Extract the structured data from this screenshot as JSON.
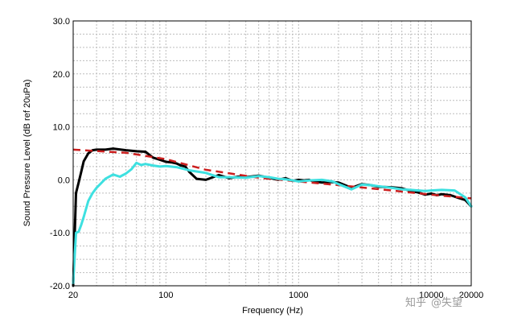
{
  "chart_data": {
    "type": "line",
    "title": "",
    "xlabel": "Frequency (Hz)",
    "ylabel": "Sound Pressure Level (dB ref 20uPa)",
    "xscale": "log",
    "xlim": [
      20,
      20000
    ],
    "ylim": [
      -20,
      30
    ],
    "grid": true,
    "y_ticks": [
      "30.0",
      "20.0",
      "10.0",
      "0.0",
      "-10.0",
      "-20.0"
    ],
    "y_tick_values": [
      30,
      20,
      10,
      0,
      -10,
      -20
    ],
    "x_ticks": [
      "20",
      "100",
      "1000",
      "10000",
      "20000"
    ],
    "x_tick_values": [
      20,
      100,
      1000,
      10000,
      20000
    ],
    "series": [
      {
        "color": "#000000",
        "dash": "solid",
        "x": [
          20,
          21,
          22,
          23,
          24,
          26,
          28,
          30,
          35,
          40,
          50,
          60,
          70,
          80,
          90,
          100,
          110,
          120,
          130,
          140,
          150,
          170,
          200,
          250,
          300,
          350,
          400,
          500,
          600,
          700,
          800,
          900,
          1000,
          1100,
          1200,
          1300,
          1500,
          1700,
          2000,
          2500,
          3000,
          3500,
          4000,
          5000,
          6000,
          7000,
          8000,
          9000,
          10000,
          11000,
          12000,
          14000,
          16000,
          18000,
          20000
        ],
        "y": [
          -20,
          -2.5,
          -0.5,
          1.5,
          3.5,
          5.0,
          5.6,
          5.7,
          5.7,
          5.9,
          5.6,
          5.4,
          5.3,
          4.2,
          3.8,
          3.4,
          3.3,
          3.1,
          2.7,
          2.5,
          1.5,
          0.2,
          0.0,
          0.9,
          0.3,
          0.6,
          0.5,
          0.8,
          0.4,
          0.0,
          0.3,
          -0.2,
          0.0,
          -0.1,
          0.0,
          -0.3,
          -0.5,
          -0.4,
          -0.5,
          -1.5,
          -0.8,
          -1.0,
          -1.3,
          -1.4,
          -1.6,
          -2.1,
          -2.4,
          -2.8,
          -2.6,
          -2.9,
          -2.7,
          -2.9,
          -3.4,
          -3.8,
          -5.0
        ]
      },
      {
        "color": "#cc1f1f",
        "dash": "dashed",
        "x": [
          20,
          50,
          100,
          200,
          500,
          1000,
          2000,
          5000,
          10000,
          20000
        ],
        "y": [
          5.7,
          5.1,
          3.9,
          1.9,
          0.4,
          -0.3,
          -1.0,
          -2.0,
          -2.8,
          -3.5
        ]
      },
      {
        "color": "#3ee0e0",
        "dash": "solid",
        "x": [
          20,
          21,
          22,
          23,
          24,
          26,
          28,
          30,
          35,
          40,
          45,
          50,
          55,
          60,
          65,
          70,
          80,
          90,
          100,
          120,
          150,
          200,
          250,
          300,
          400,
          500,
          600,
          700,
          800,
          1000,
          1200,
          1500,
          1800,
          2000,
          2500,
          3000,
          3500,
          4000,
          5000,
          6000,
          7000,
          8000,
          9000,
          10000,
          12000,
          15000,
          18000,
          20000
        ],
        "y": [
          -19.5,
          -10.0,
          -9.8,
          -8.5,
          -7.0,
          -4.0,
          -2.5,
          -1.5,
          0.2,
          1.0,
          0.6,
          1.2,
          2.0,
          3.2,
          2.8,
          3.0,
          2.7,
          2.5,
          2.6,
          2.4,
          1.8,
          1.3,
          0.5,
          0.5,
          0.4,
          0.7,
          0.5,
          0.2,
          0.1,
          -0.3,
          -0.1,
          0.0,
          -0.3,
          -0.8,
          -1.8,
          -0.9,
          -1.0,
          -1.2,
          -1.5,
          -1.8,
          -1.9,
          -2.0,
          -2.1,
          -2.0,
          -1.9,
          -2.0,
          -3.3,
          -5.0
        ]
      }
    ]
  },
  "watermark": {
    "logo_text": "知乎",
    "handle": "@失望"
  }
}
